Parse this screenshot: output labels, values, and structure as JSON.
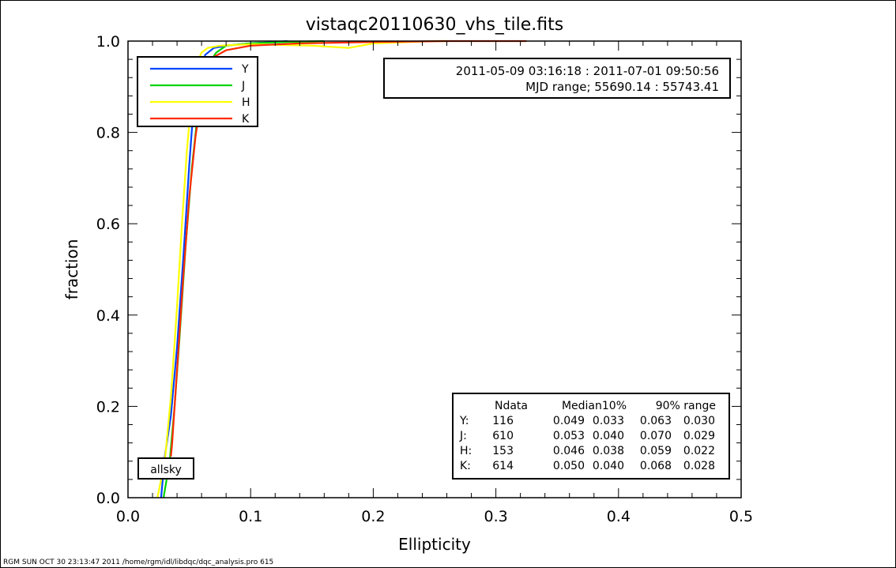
{
  "footer": "RGM SUN OCT 30 23:13:47 2011 /home/rgm/idl/libdqc/dqc_analysis.pro 615",
  "chart_data": {
    "type": "line",
    "title": "vistaqc20110630_vhs_tile.fits",
    "xlabel": "Ellipticity",
    "ylabel": "fraction",
    "xlim": [
      0.0,
      0.5
    ],
    "ylim": [
      0.0,
      1.0
    ],
    "xticks": [
      "0.0",
      "0.1",
      "0.2",
      "0.3",
      "0.4",
      "0.5"
    ],
    "yticks": [
      "0.0",
      "0.2",
      "0.4",
      "0.6",
      "0.8",
      "1.0"
    ],
    "grid": false,
    "legend": [
      "Y",
      "J",
      "H",
      "K"
    ],
    "legend_position": "top-left",
    "series": [
      {
        "name": "Y",
        "color": "#0044ff",
        "x": [
          0.027,
          0.03,
          0.035,
          0.04,
          0.045,
          0.05,
          0.053,
          0.058,
          0.063,
          0.07,
          0.08,
          0.1,
          0.12,
          0.13
        ],
        "y": [
          0.0,
          0.09,
          0.18,
          0.33,
          0.52,
          0.73,
          0.84,
          0.93,
          0.97,
          0.985,
          0.99,
          0.995,
          0.998,
          1.0
        ]
      },
      {
        "name": "J",
        "color": "#00d200",
        "x": [
          0.029,
          0.034,
          0.038,
          0.042,
          0.047,
          0.052,
          0.056,
          0.06,
          0.066,
          0.072,
          0.08,
          0.1,
          0.13,
          0.16
        ],
        "y": [
          0.0,
          0.08,
          0.2,
          0.35,
          0.55,
          0.72,
          0.82,
          0.9,
          0.95,
          0.975,
          0.99,
          0.995,
          0.998,
          1.0
        ]
      },
      {
        "name": "H",
        "color": "#ffff00",
        "x": [
          0.024,
          0.03,
          0.035,
          0.04,
          0.044,
          0.048,
          0.052,
          0.056,
          0.06,
          0.065,
          0.075,
          0.1,
          0.15,
          0.18,
          0.2,
          0.25,
          0.26
        ],
        "y": [
          0.0,
          0.08,
          0.22,
          0.42,
          0.6,
          0.76,
          0.88,
          0.95,
          0.975,
          0.985,
          0.99,
          0.993,
          0.99,
          0.985,
          0.995,
          1.0,
          1.0
        ]
      },
      {
        "name": "K",
        "color": "#ff2a00",
        "x": [
          0.035,
          0.036,
          0.04,
          0.045,
          0.05,
          0.055,
          0.06,
          0.064,
          0.07,
          0.08,
          0.1,
          0.14,
          0.2,
          0.26,
          0.32,
          0.325
        ],
        "y": [
          0.09,
          0.12,
          0.28,
          0.48,
          0.66,
          0.79,
          0.88,
          0.93,
          0.965,
          0.98,
          0.99,
          0.995,
          0.998,
          1.0,
          1.0,
          1.0
        ]
      }
    ],
    "date_box": {
      "line1": "2011-05-09 03:16:18 : 2011-07-01 09:50:56",
      "line2": "MJD range;    55690.14 :    55743.41"
    },
    "label_box": "allsky",
    "stats_table": {
      "columns": [
        "Ndata",
        "Median10%",
        "90% range"
      ],
      "rows": [
        {
          "band": "Y:",
          "ndata": "116",
          "median": "0.049",
          "p10": "0.033",
          "p90": "0.063",
          "range": "0.030"
        },
        {
          "band": "J:",
          "ndata": "610",
          "median": "0.053",
          "p10": "0.040",
          "p90": "0.070",
          "range": "0.029"
        },
        {
          "band": "H:",
          "ndata": "153",
          "median": "0.046",
          "p10": "0.038",
          "p90": "0.059",
          "range": "0.022"
        },
        {
          "band": "K:",
          "ndata": "614",
          "median": "0.050",
          "p10": "0.040",
          "p90": "0.068",
          "range": "0.028"
        }
      ]
    }
  }
}
